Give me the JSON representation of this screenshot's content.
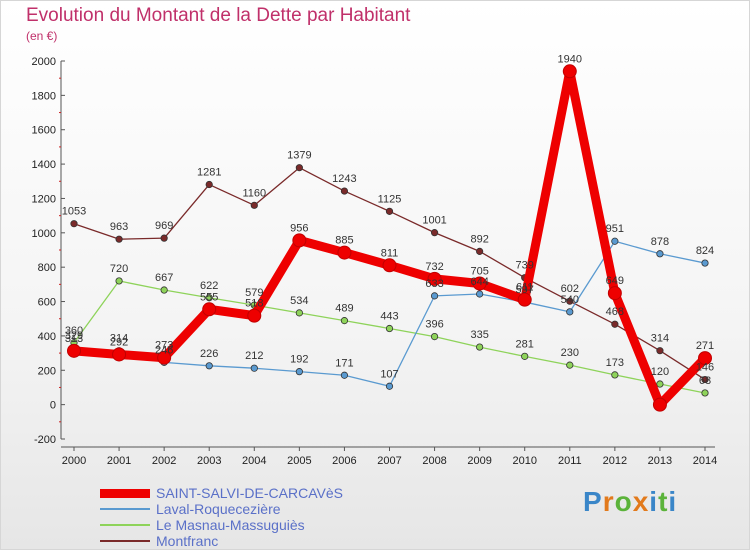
{
  "header": {
    "title": "Evolution du Montant de la Dette par Habitant",
    "unit": "(en €)"
  },
  "logo": {
    "text": "Proxiti"
  },
  "chart_data": {
    "type": "line",
    "title": "Evolution du Montant de la Dette par Habitant",
    "ylabel": "(en €)",
    "xlabel": "",
    "x": [
      "2000",
      "2001",
      "2002",
      "2003",
      "2004",
      "2005",
      "2006",
      "2007",
      "2008",
      "2009",
      "2010",
      "2011",
      "2012",
      "2013",
      "2014"
    ],
    "ylim": [
      -200,
      2000
    ],
    "yticks": [
      -200,
      0,
      200,
      400,
      600,
      800,
      1000,
      1200,
      1400,
      1600,
      1800,
      2000
    ],
    "grid": false,
    "legend_position": "bottom-left",
    "series": [
      {
        "name": "SAINT-SALVI-DE-CARCAVèS",
        "color": "#ee0000",
        "values": [
          313,
          292,
          273,
          555,
          518,
          956,
          885,
          811,
          732,
          705,
          611,
          1940,
          649,
          0,
          271
        ],
        "labels": [
          "313",
          "292",
          "273",
          "555",
          "518",
          "956",
          "885",
          "811",
          "732",
          "705",
          "611",
          "1940",
          "649",
          "",
          "271"
        ]
      },
      {
        "name": "Laval-Roquecezière",
        "color": "#5a9ad0",
        "values": [
          329,
          314,
          246,
          226,
          212,
          192,
          171,
          107,
          633,
          644,
          597,
          540,
          951,
          878,
          824
        ],
        "labels": [
          "329",
          "314",
          "246",
          "226",
          "212",
          "192",
          "171",
          "107",
          "633",
          "644",
          "597",
          "540",
          "951",
          "878",
          "824"
        ]
      },
      {
        "name": "Le Masnau-Massuguiès",
        "color": "#8ed35a",
        "values": [
          360,
          720,
          667,
          622,
          579,
          534,
          489,
          443,
          396,
          335,
          281,
          230,
          173,
          120,
          68
        ],
        "labels": [
          "360",
          "720",
          "667",
          "622",
          "579",
          "534",
          "489",
          "443",
          "396",
          "335",
          "281",
          "230",
          "173",
          "120",
          "68"
        ]
      },
      {
        "name": "Montfranc",
        "color": "#7a2a2a",
        "values": [
          1053,
          963,
          969,
          1281,
          1160,
          1379,
          1243,
          1125,
          1001,
          892,
          739,
          602,
          468,
          314,
          146
        ],
        "labels": [
          "1053",
          "963",
          "969",
          "1281",
          "1160",
          "1379",
          "1243",
          "1125",
          "1001",
          "892",
          "739",
          "602",
          "468",
          "314",
          "146"
        ]
      }
    ]
  }
}
